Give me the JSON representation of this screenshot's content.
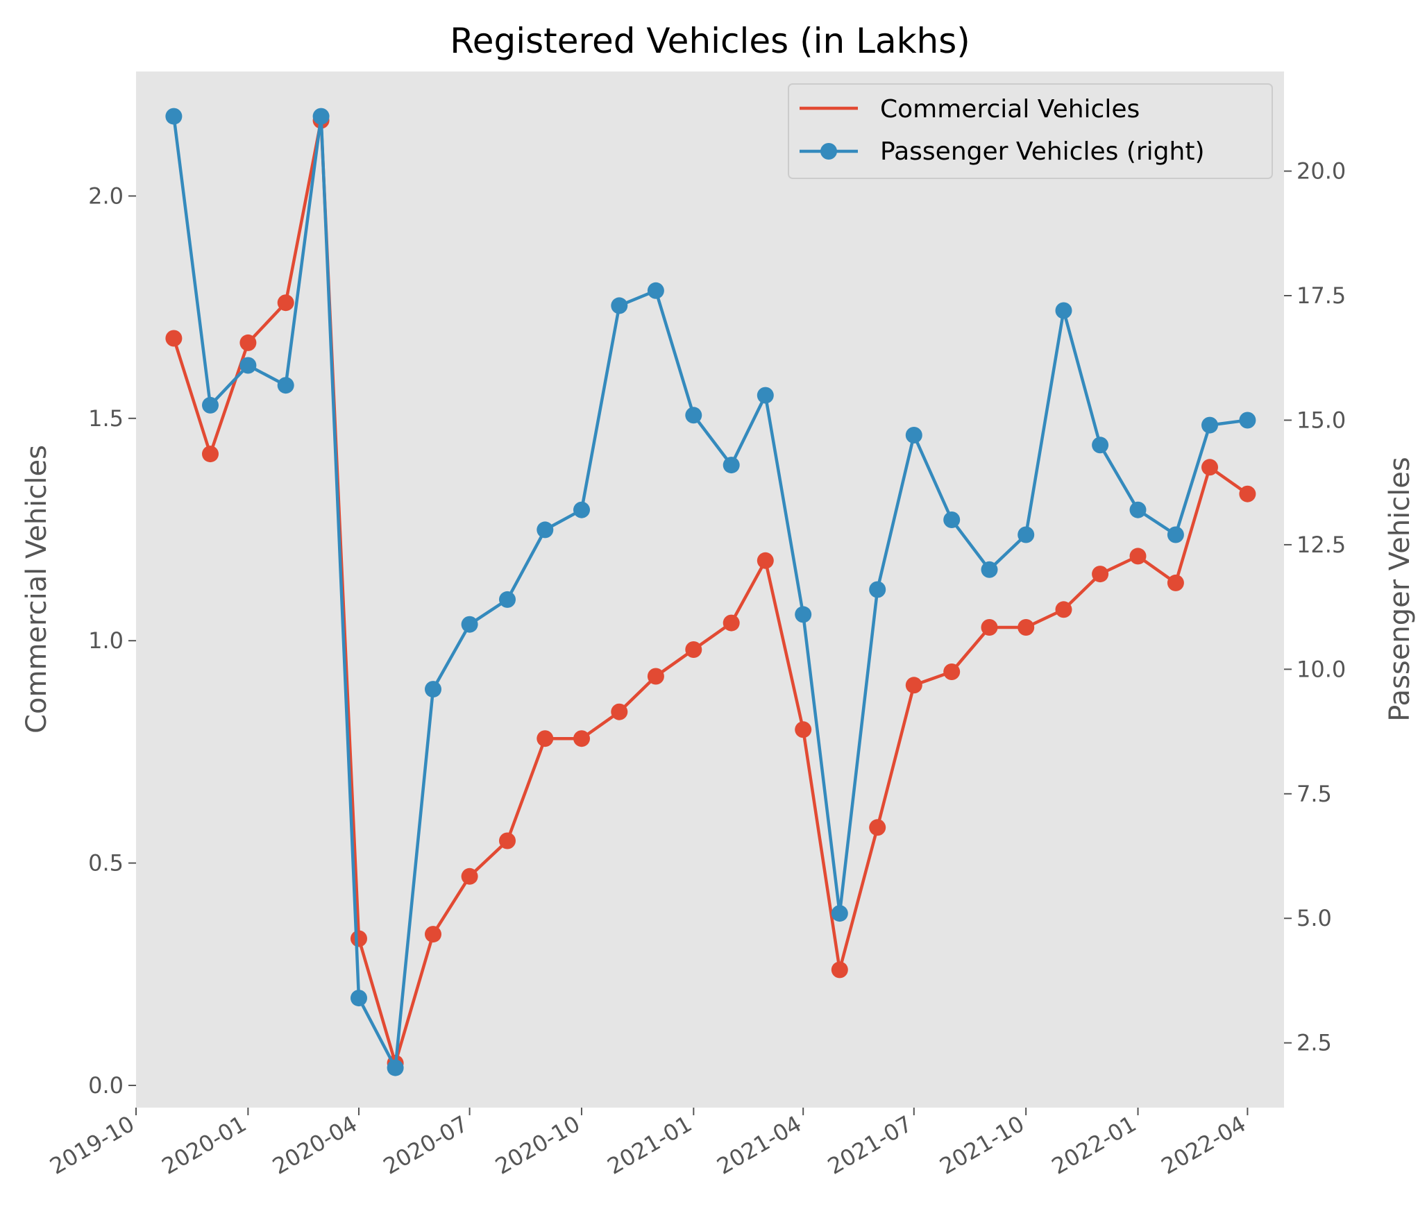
{
  "chart_data": {
    "type": "line",
    "title": "Registered Vehicles (in Lakhs)",
    "x": [
      "2019-11",
      "2019-12",
      "2020-01",
      "2020-02",
      "2020-03",
      "2020-04",
      "2020-05",
      "2020-06",
      "2020-07",
      "2020-08",
      "2020-09",
      "2020-10",
      "2020-11",
      "2020-12",
      "2021-01",
      "2021-02",
      "2021-03",
      "2021-04",
      "2021-05",
      "2021-06",
      "2021-07",
      "2021-08",
      "2021-09",
      "2021-10",
      "2021-11",
      "2021-12",
      "2022-01",
      "2022-02",
      "2022-03",
      "2022-04"
    ],
    "x_ticks": [
      "2019-10",
      "2020-01",
      "2020-04",
      "2020-07",
      "2020-10",
      "2021-01",
      "2021-04",
      "2021-07",
      "2021-10",
      "2022-01",
      "2022-04"
    ],
    "xlim": [
      "2019-10-01",
      "2022-05-01"
    ],
    "ylabel_left": "Commercial Vehicles",
    "ylabel_right": "Passenger Vehicles",
    "ylim_left": [
      -0.05,
      2.28
    ],
    "ylim_right": [
      1.2,
      22.0
    ],
    "yticks_left": [
      "0.0",
      "0.5",
      "1.0",
      "1.5",
      "2.0"
    ],
    "yticks_right": [
      "2.5",
      "5.0",
      "7.5",
      "10.0",
      "12.5",
      "15.0",
      "17.5",
      "20.0"
    ],
    "grid": false,
    "legend_position": "upper right",
    "series": [
      {
        "name": "Commercial Vehicles",
        "axis": "left",
        "color": "#E24A33",
        "values": [
          1.68,
          1.42,
          1.67,
          1.76,
          2.17,
          0.33,
          0.05,
          0.34,
          0.47,
          0.55,
          0.78,
          0.78,
          0.84,
          0.92,
          0.98,
          1.04,
          1.18,
          0.8,
          0.26,
          0.58,
          0.9,
          0.93,
          1.03,
          1.03,
          1.07,
          1.15,
          1.19,
          1.13,
          1.39,
          1.33
        ]
      },
      {
        "name": "Passenger Vehicles (right)",
        "axis": "right",
        "color": "#348ABD",
        "values": [
          21.1,
          15.3,
          16.1,
          15.7,
          21.1,
          3.4,
          2.0,
          9.6,
          10.9,
          11.4,
          12.8,
          13.2,
          17.3,
          17.6,
          15.1,
          14.1,
          15.5,
          11.1,
          5.1,
          11.6,
          14.7,
          13.0,
          12.0,
          12.7,
          17.2,
          14.5,
          13.2,
          12.7,
          14.9,
          15.0
        ]
      }
    ]
  }
}
